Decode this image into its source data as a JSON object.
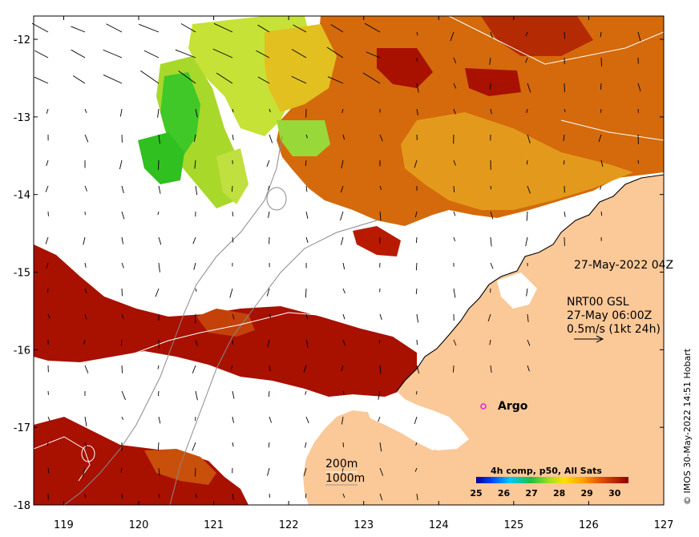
{
  "map": {
    "lon_ticks": [
      "119",
      "120",
      "121",
      "122",
      "123",
      "124",
      "125",
      "126",
      "127"
    ],
    "lat_ticks": [
      "-12",
      "-13",
      "-14",
      "-15",
      "-16",
      "-17",
      "-18"
    ],
    "lon_range": [
      118.6,
      127.0
    ],
    "lat_range": [
      -18.0,
      -11.7
    ]
  },
  "annotations": {
    "date_stamp": "27-May-2022 04Z",
    "product": "NRT00 GSL",
    "product_time": "27-May 06:00Z",
    "scale_label": "0.5m/s (1kt 24h)",
    "argo_label": "Argo",
    "contour_200": "200m",
    "contour_1000": "1000m"
  },
  "colorbar": {
    "title": "4h comp, p50, All Sats",
    "ticks": [
      "25",
      "26",
      "27",
      "28",
      "29",
      "30"
    ],
    "range": [
      25,
      30.5
    ]
  },
  "credit": "© IMOS 30-May-2022 14:51 Hobart",
  "colors": {
    "land": "#fbc898",
    "sst_hot": "#a81000",
    "sst_warm": "#d0600a",
    "sst_mid": "#e9a21e",
    "sst_cool": "#b8e43a",
    "sst_cold": "#40d020",
    "argo_marker": "#e020e0"
  }
}
